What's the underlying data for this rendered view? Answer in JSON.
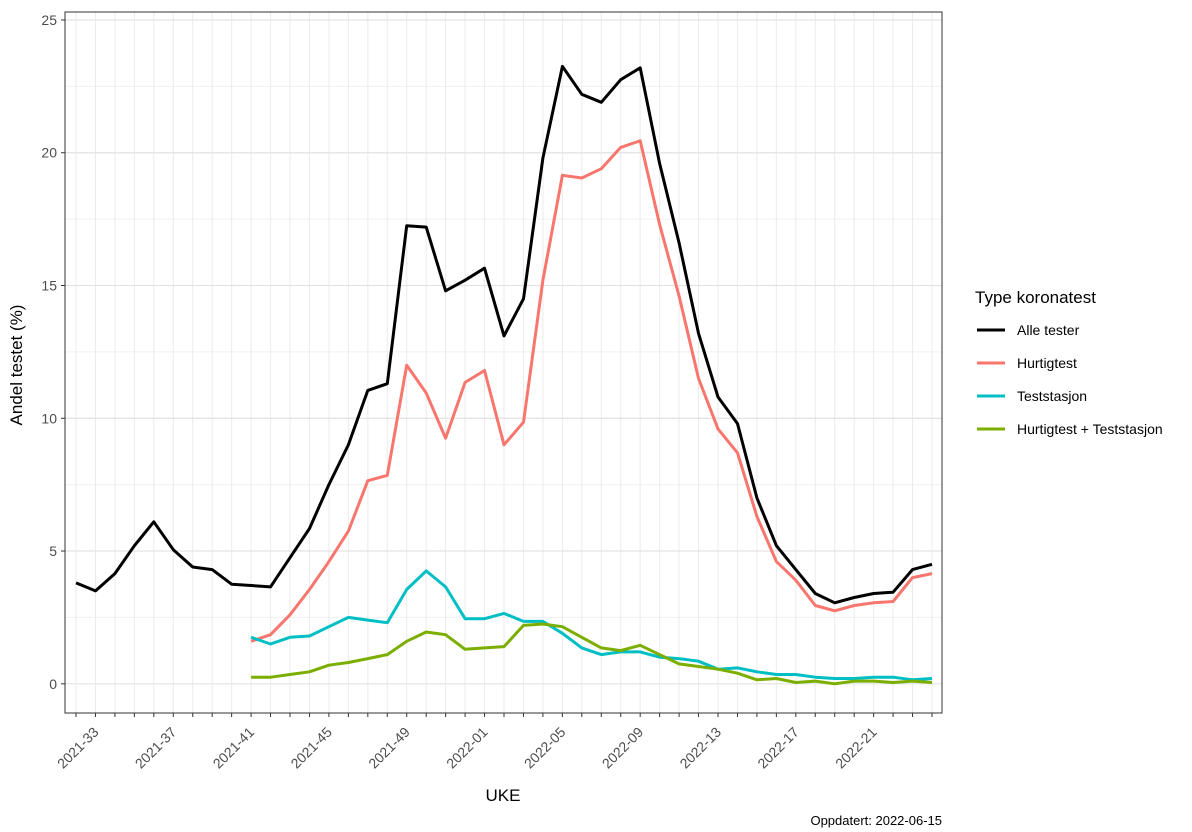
{
  "chart_data": {
    "type": "line",
    "x_label": "UKE",
    "y_label": "Andel testet (%)",
    "legend_title": "Type koronatest",
    "legend_position": "right",
    "caption": "Oppdatert: 2022-06-15",
    "grid": true,
    "ylim": [
      -1.1,
      25.3
    ],
    "yticks": [
      0,
      5,
      10,
      15,
      20,
      25
    ],
    "categories": [
      null,
      "2021-33",
      null,
      null,
      null,
      "2021-37",
      null,
      null,
      null,
      "2021-41",
      null,
      null,
      null,
      "2021-45",
      null,
      null,
      null,
      "2021-49",
      null,
      null,
      null,
      "2022-01",
      null,
      null,
      null,
      "2022-05",
      null,
      null,
      null,
      "2022-09",
      null,
      null,
      null,
      "2022-13",
      null,
      null,
      null,
      "2022-17",
      null,
      null,
      null,
      "2022-21",
      null,
      null,
      null
    ],
    "series": [
      {
        "name": "Alle tester",
        "color": "#000000",
        "values": [
          3.8,
          3.5,
          4.15,
          5.2,
          6.1,
          5.05,
          4.4,
          4.3,
          3.75,
          3.7,
          3.65,
          4.75,
          5.85,
          7.5,
          9.0,
          11.05,
          11.3,
          17.25,
          17.2,
          14.8,
          15.2,
          15.65,
          13.1,
          14.5,
          19.8,
          23.25,
          22.2,
          21.9,
          22.75,
          23.2,
          19.6,
          16.6,
          13.2,
          10.8,
          9.8,
          7.0,
          5.2,
          4.3,
          3.4,
          3.05,
          3.25,
          3.4,
          3.45,
          4.3,
          4.5
        ]
      },
      {
        "name": "Hurtigtest",
        "color": "#f8766d",
        "values": [
          null,
          null,
          null,
          null,
          null,
          null,
          null,
          null,
          null,
          1.6,
          1.85,
          2.6,
          3.55,
          4.6,
          5.75,
          7.65,
          7.85,
          12.0,
          10.95,
          9.25,
          11.35,
          11.8,
          9.0,
          9.85,
          15.2,
          19.15,
          19.05,
          19.4,
          20.2,
          20.45,
          17.3,
          14.6,
          11.5,
          9.6,
          8.7,
          6.3,
          4.6,
          3.9,
          2.95,
          2.75,
          2.95,
          3.05,
          3.1,
          4.0,
          4.15
        ]
      },
      {
        "name": "Teststasjon",
        "color": "#00bfc4",
        "values": [
          null,
          null,
          null,
          null,
          null,
          null,
          null,
          null,
          null,
          1.75,
          1.5,
          1.75,
          1.8,
          2.15,
          2.5,
          2.4,
          2.3,
          3.55,
          4.25,
          3.65,
          2.45,
          2.45,
          2.65,
          2.35,
          2.35,
          1.9,
          1.35,
          1.1,
          1.2,
          1.2,
          1.0,
          0.95,
          0.85,
          0.55,
          0.6,
          0.45,
          0.35,
          0.35,
          0.25,
          0.2,
          0.2,
          0.25,
          0.25,
          0.15,
          0.2
        ]
      },
      {
        "name": "Hurtigtest + Teststasjon",
        "color": "#7cae00",
        "values": [
          null,
          null,
          null,
          null,
          null,
          null,
          null,
          null,
          null,
          0.25,
          0.25,
          0.35,
          0.45,
          0.7,
          0.8,
          0.95,
          1.1,
          1.6,
          1.95,
          1.85,
          1.3,
          1.35,
          1.4,
          2.2,
          2.25,
          2.15,
          1.75,
          1.35,
          1.25,
          1.45,
          1.1,
          0.75,
          0.65,
          0.55,
          0.4,
          0.15,
          0.2,
          0.05,
          0.1,
          0.0,
          0.1,
          0.1,
          0.05,
          0.1,
          0.05
        ]
      }
    ]
  }
}
